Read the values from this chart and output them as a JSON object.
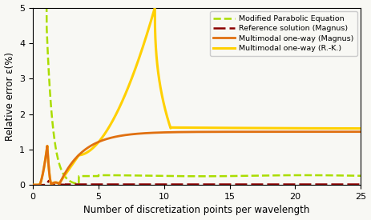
{
  "title": "",
  "xlabel": "Number of discretization points per wavelength",
  "ylabel": "Relative error ε(%)",
  "xlim": [
    0,
    25
  ],
  "ylim": [
    0,
    5
  ],
  "yticks": [
    0,
    1,
    2,
    3,
    4,
    5
  ],
  "xticks": [
    0,
    5,
    10,
    15,
    20,
    25
  ],
  "legend": [
    {
      "label": "Multimodal one-way (Magnus)",
      "color": "#E07010",
      "linestyle": "solid",
      "linewidth": 2.0
    },
    {
      "label": "Multimodal one-way (R.-K.)",
      "color": "#FFD000",
      "linestyle": "solid",
      "linewidth": 2.2
    },
    {
      "label": "Modified Parabolic Equation",
      "color": "#AADD00",
      "linestyle": "dashed",
      "linewidth": 1.8
    },
    {
      "label": "Reference solution (Magnus)",
      "color": "#8B0000",
      "linestyle": "dashed",
      "linewidth": 1.8
    }
  ],
  "background_color": "#f8f8f4"
}
